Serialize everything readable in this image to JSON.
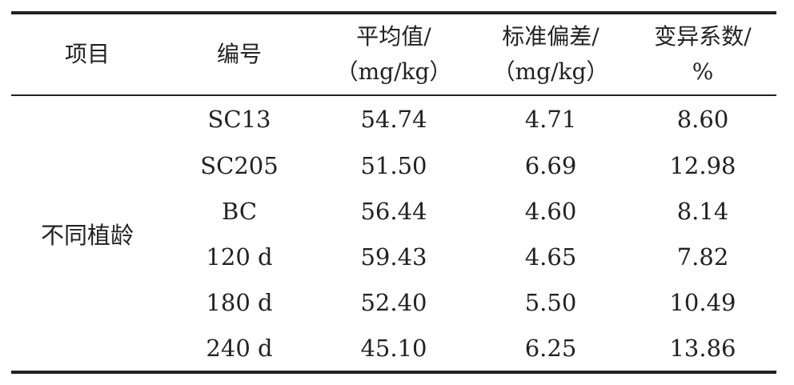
{
  "table": {
    "headers": [
      {
        "line1": "项目",
        "line2": ""
      },
      {
        "line1": "编号",
        "line2": ""
      },
      {
        "line1": "平均值/",
        "line2": "（mg/kg）"
      },
      {
        "line1": "标准偏差/",
        "line2": "（mg/kg）"
      },
      {
        "line1": "变异系数/",
        "line2": "%"
      }
    ],
    "group_label": "不同植龄",
    "rows": [
      {
        "id": "SC13",
        "mean": "54.74",
        "sd": "4.71",
        "cv": "8.60"
      },
      {
        "id": "SC205",
        "mean": "51.50",
        "sd": "6.69",
        "cv": "12.98"
      },
      {
        "id": "BC",
        "mean": "56.44",
        "sd": "4.60",
        "cv": "8.14"
      },
      {
        "id": "120 d",
        "mean": "59.43",
        "sd": "4.65",
        "cv": "7.82"
      },
      {
        "id": "180 d",
        "mean": "52.40",
        "sd": "5.50",
        "cv": "10.49"
      },
      {
        "id": "240 d",
        "mean": "45.10",
        "sd": "6.25",
        "cv": "13.86"
      }
    ]
  }
}
